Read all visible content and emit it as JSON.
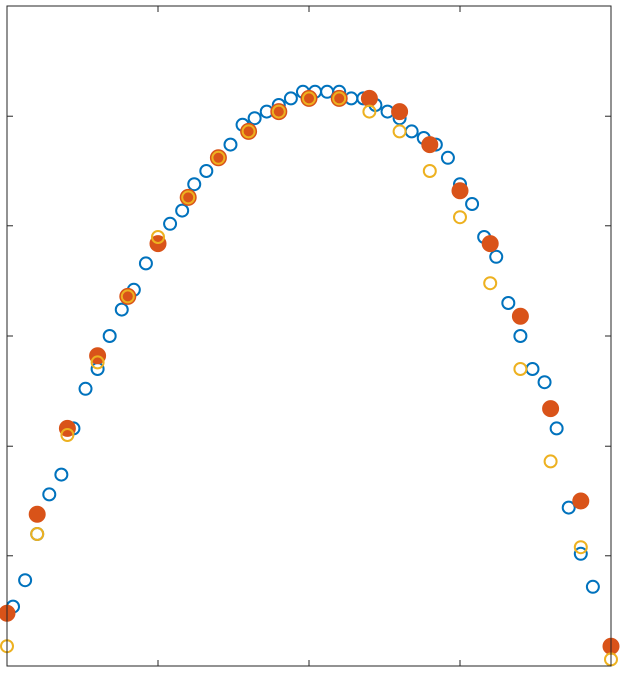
{
  "chart_data": {
    "type": "scatter",
    "title": "",
    "xlabel": "",
    "ylabel": "",
    "xlim": [
      0,
      1
    ],
    "ylim": [
      0,
      1
    ],
    "grid": false,
    "x_ticks": [
      0.25,
      0.5,
      0.75
    ],
    "y_ticks": [
      0.167,
      0.333,
      0.5,
      0.667,
      0.833
    ],
    "series": [
      {
        "marker": "open-circle",
        "color": "#0072BD",
        "x": [
          0.01,
          0.03,
          0.05,
          0.07,
          0.09,
          0.11,
          0.13,
          0.15,
          0.17,
          0.19,
          0.21,
          0.23,
          0.25,
          0.27,
          0.29,
          0.31,
          0.33,
          0.35,
          0.37,
          0.39,
          0.41,
          0.43,
          0.45,
          0.47,
          0.49,
          0.51,
          0.53,
          0.55,
          0.57,
          0.59,
          0.61,
          0.63,
          0.65,
          0.67,
          0.69,
          0.71,
          0.73,
          0.75,
          0.77,
          0.79,
          0.81,
          0.83,
          0.85,
          0.87,
          0.89,
          0.91,
          0.93,
          0.95,
          0.97
        ],
        "y": [
          0.09,
          0.13,
          0.2,
          0.26,
          0.29,
          0.36,
          0.42,
          0.45,
          0.5,
          0.54,
          0.57,
          0.61,
          0.64,
          0.67,
          0.69,
          0.73,
          0.75,
          0.77,
          0.79,
          0.82,
          0.83,
          0.84,
          0.85,
          0.86,
          0.87,
          0.87,
          0.87,
          0.87,
          0.86,
          0.86,
          0.85,
          0.84,
          0.83,
          0.81,
          0.8,
          0.79,
          0.77,
          0.73,
          0.7,
          0.65,
          0.62,
          0.55,
          0.5,
          0.45,
          0.43,
          0.36,
          0.24,
          0.17,
          0.12
        ]
      },
      {
        "marker": "filled-circle",
        "color": "#D95319",
        "x": [
          0.0,
          0.05,
          0.1,
          0.15,
          0.2,
          0.25,
          0.3,
          0.35,
          0.4,
          0.45,
          0.5,
          0.55,
          0.6,
          0.65,
          0.7,
          0.75,
          0.8,
          0.85,
          0.9,
          0.95,
          1.0
        ],
        "y": [
          0.08,
          0.23,
          0.36,
          0.47,
          0.56,
          0.64,
          0.71,
          0.77,
          0.81,
          0.84,
          0.86,
          0.86,
          0.86,
          0.84,
          0.79,
          0.72,
          0.64,
          0.53,
          0.39,
          0.25,
          0.03
        ]
      },
      {
        "marker": "open-circle",
        "color": "#EDB120",
        "x": [
          0.0,
          0.05,
          0.1,
          0.15,
          0.2,
          0.25,
          0.3,
          0.35,
          0.4,
          0.45,
          0.5,
          0.55,
          0.6,
          0.65,
          0.7,
          0.75,
          0.8,
          0.85,
          0.9,
          0.95,
          1.0
        ],
        "y": [
          0.03,
          0.2,
          0.35,
          0.46,
          0.56,
          0.65,
          0.71,
          0.77,
          0.81,
          0.84,
          0.86,
          0.86,
          0.84,
          0.81,
          0.75,
          0.68,
          0.58,
          0.45,
          0.31,
          0.18,
          0.01
        ]
      }
    ]
  }
}
